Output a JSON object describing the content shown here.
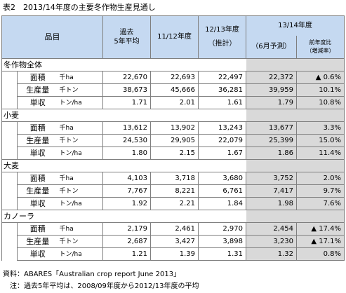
{
  "title": "表2　2013/14年度の主要冬作物生産見通し",
  "header": {
    "item": "品目",
    "col1": [
      "過去",
      "5年平均"
    ],
    "col2": "11/12年度",
    "col3": [
      "12/13年度",
      "（推計）"
    ],
    "col4_group": "13/14年度",
    "col4": "（6月予測）",
    "col5": [
      "前年度比",
      "（増減率）"
    ]
  },
  "categories": [
    {
      "name": "冬作物全体",
      "rows": [
        {
          "label": "面積",
          "unit": "千ha",
          "avg": "22,670",
          "y1112": "22,693",
          "y1213": "22,497",
          "y1314": "22,372",
          "change": "▲ 0.6%"
        },
        {
          "label": "生産量",
          "unit": "千トン",
          "avg": "38,673",
          "y1112": "45,666",
          "y1213": "36,281",
          "y1314": "39,959",
          "change": "10.1%"
        },
        {
          "label": "単収",
          "unit": "トン/ha",
          "avg": "1.71",
          "y1112": "2.01",
          "y1213": "1.61",
          "y1314": "1.79",
          "change": "10.8%"
        }
      ]
    },
    {
      "name": "小麦",
      "rows": [
        {
          "label": "面積",
          "unit": "千ha",
          "avg": "13,612",
          "y1112": "13,902",
          "y1213": "13,243",
          "y1314": "13,677",
          "change": "3.3%"
        },
        {
          "label": "生産量",
          "unit": "千トン",
          "avg": "24,530",
          "y1112": "29,905",
          "y1213": "22,079",
          "y1314": "25,399",
          "change": "15.0%"
        },
        {
          "label": "単収",
          "unit": "トン/ha",
          "avg": "1.80",
          "y1112": "2.15",
          "y1213": "1.67",
          "y1314": "1.86",
          "change": "11.4%"
        }
      ]
    },
    {
      "name": "大麦",
      "rows": [
        {
          "label": "面積",
          "unit": "千ha",
          "avg": "4,103",
          "y1112": "3,718",
          "y1213": "3,680",
          "y1314": "3,752",
          "change": "2.0%"
        },
        {
          "label": "生産量",
          "unit": "千トン",
          "avg": "7,767",
          "y1112": "8,221",
          "y1213": "6,761",
          "y1314": "7,417",
          "change": "9.7%"
        },
        {
          "label": "単収",
          "unit": "トン/ha",
          "avg": "1.92",
          "y1112": "2.21",
          "y1213": "1.84",
          "y1314": "1.98",
          "change": "7.6%"
        }
      ]
    },
    {
      "name": "カノーラ",
      "rows": [
        {
          "label": "面積",
          "unit": "千ha",
          "avg": "2,179",
          "y1112": "2,461",
          "y1213": "2,970",
          "y1314": "2,454",
          "change": "▲ 17.4%"
        },
        {
          "label": "生産量",
          "unit": "千トン",
          "avg": "2,687",
          "y1112": "3,427",
          "y1213": "3,898",
          "y1314": "3,230",
          "change": "▲ 17.1%"
        },
        {
          "label": "単収",
          "unit": "トン/ha",
          "avg": "1.21",
          "y1112": "1.39",
          "y1213": "1.31",
          "y1314": "1.32",
          "change": "0.8%"
        }
      ]
    }
  ],
  "notes": {
    "source": "資料：ABARES「Australian crop report June 2013」",
    "footnote": "　注：過去5年平均は、2008/09年度から2012/13年度の平均"
  }
}
